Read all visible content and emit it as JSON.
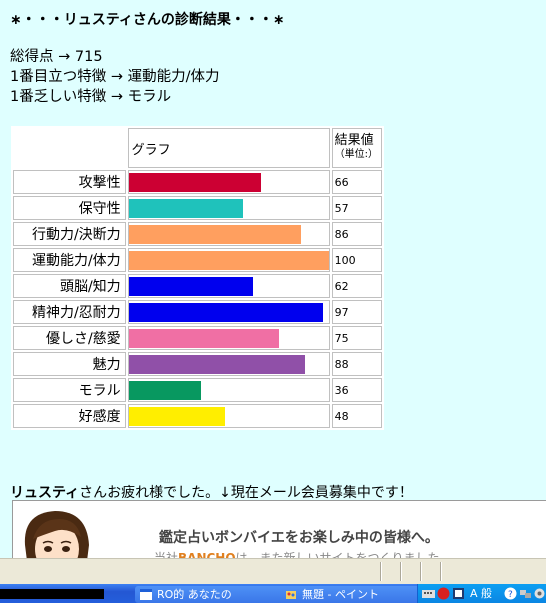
{
  "title": {
    "prefix": "∗・・・",
    "name": "リュスティ",
    "suffix": "さんの診断結果・・・∗"
  },
  "summary": {
    "total": "総得点 → 715",
    "top_trait": "1番目立つ特徴 → 運動能力/体力",
    "weak_trait": "1番乏しい特徴 → モラル"
  },
  "table": {
    "graph_header": "グラフ",
    "value_header": "結果値",
    "unit_header": "（単位:）",
    "rows": [
      {
        "label": "攻撃性",
        "value": 66,
        "color": "#cc0033"
      },
      {
        "label": "保守性",
        "value": 57,
        "color": "#1fc2bb"
      },
      {
        "label": "行動力/決断力",
        "value": 86,
        "color": "#ff9f5f"
      },
      {
        "label": "運動能力/体力",
        "value": 100,
        "color": "#ff9f5f"
      },
      {
        "label": "頭脳/知力",
        "value": 62,
        "color": "#0000ee"
      },
      {
        "label": "精神力/忍耐力",
        "value": 97,
        "color": "#0000ee"
      },
      {
        "label": "優しさ/慈愛",
        "value": 75,
        "color": "#f06fa4"
      },
      {
        "label": "魅力",
        "value": 88,
        "color": "#9050a8"
      },
      {
        "label": "モラル",
        "value": 36,
        "color": "#089860"
      },
      {
        "label": "好感度",
        "value": 48,
        "color": "#ffee00"
      }
    ],
    "max": 100
  },
  "footer": {
    "name": "リュスティ",
    "text": "さんお疲れ様でした。↓現在メール会員募集中です！"
  },
  "banner": {
    "headline": "鑑定占いボンバイエをお楽しみ中の皆様へ。",
    "sub_prefix": "当社",
    "brand": "BANCHO",
    "sub_suffix": "は、また新しいサイトをつくりました"
  },
  "taskbar": {
    "task1": "RO的 あなたの",
    "task2": "無題 - ペイント",
    "ime": "A 般"
  }
}
